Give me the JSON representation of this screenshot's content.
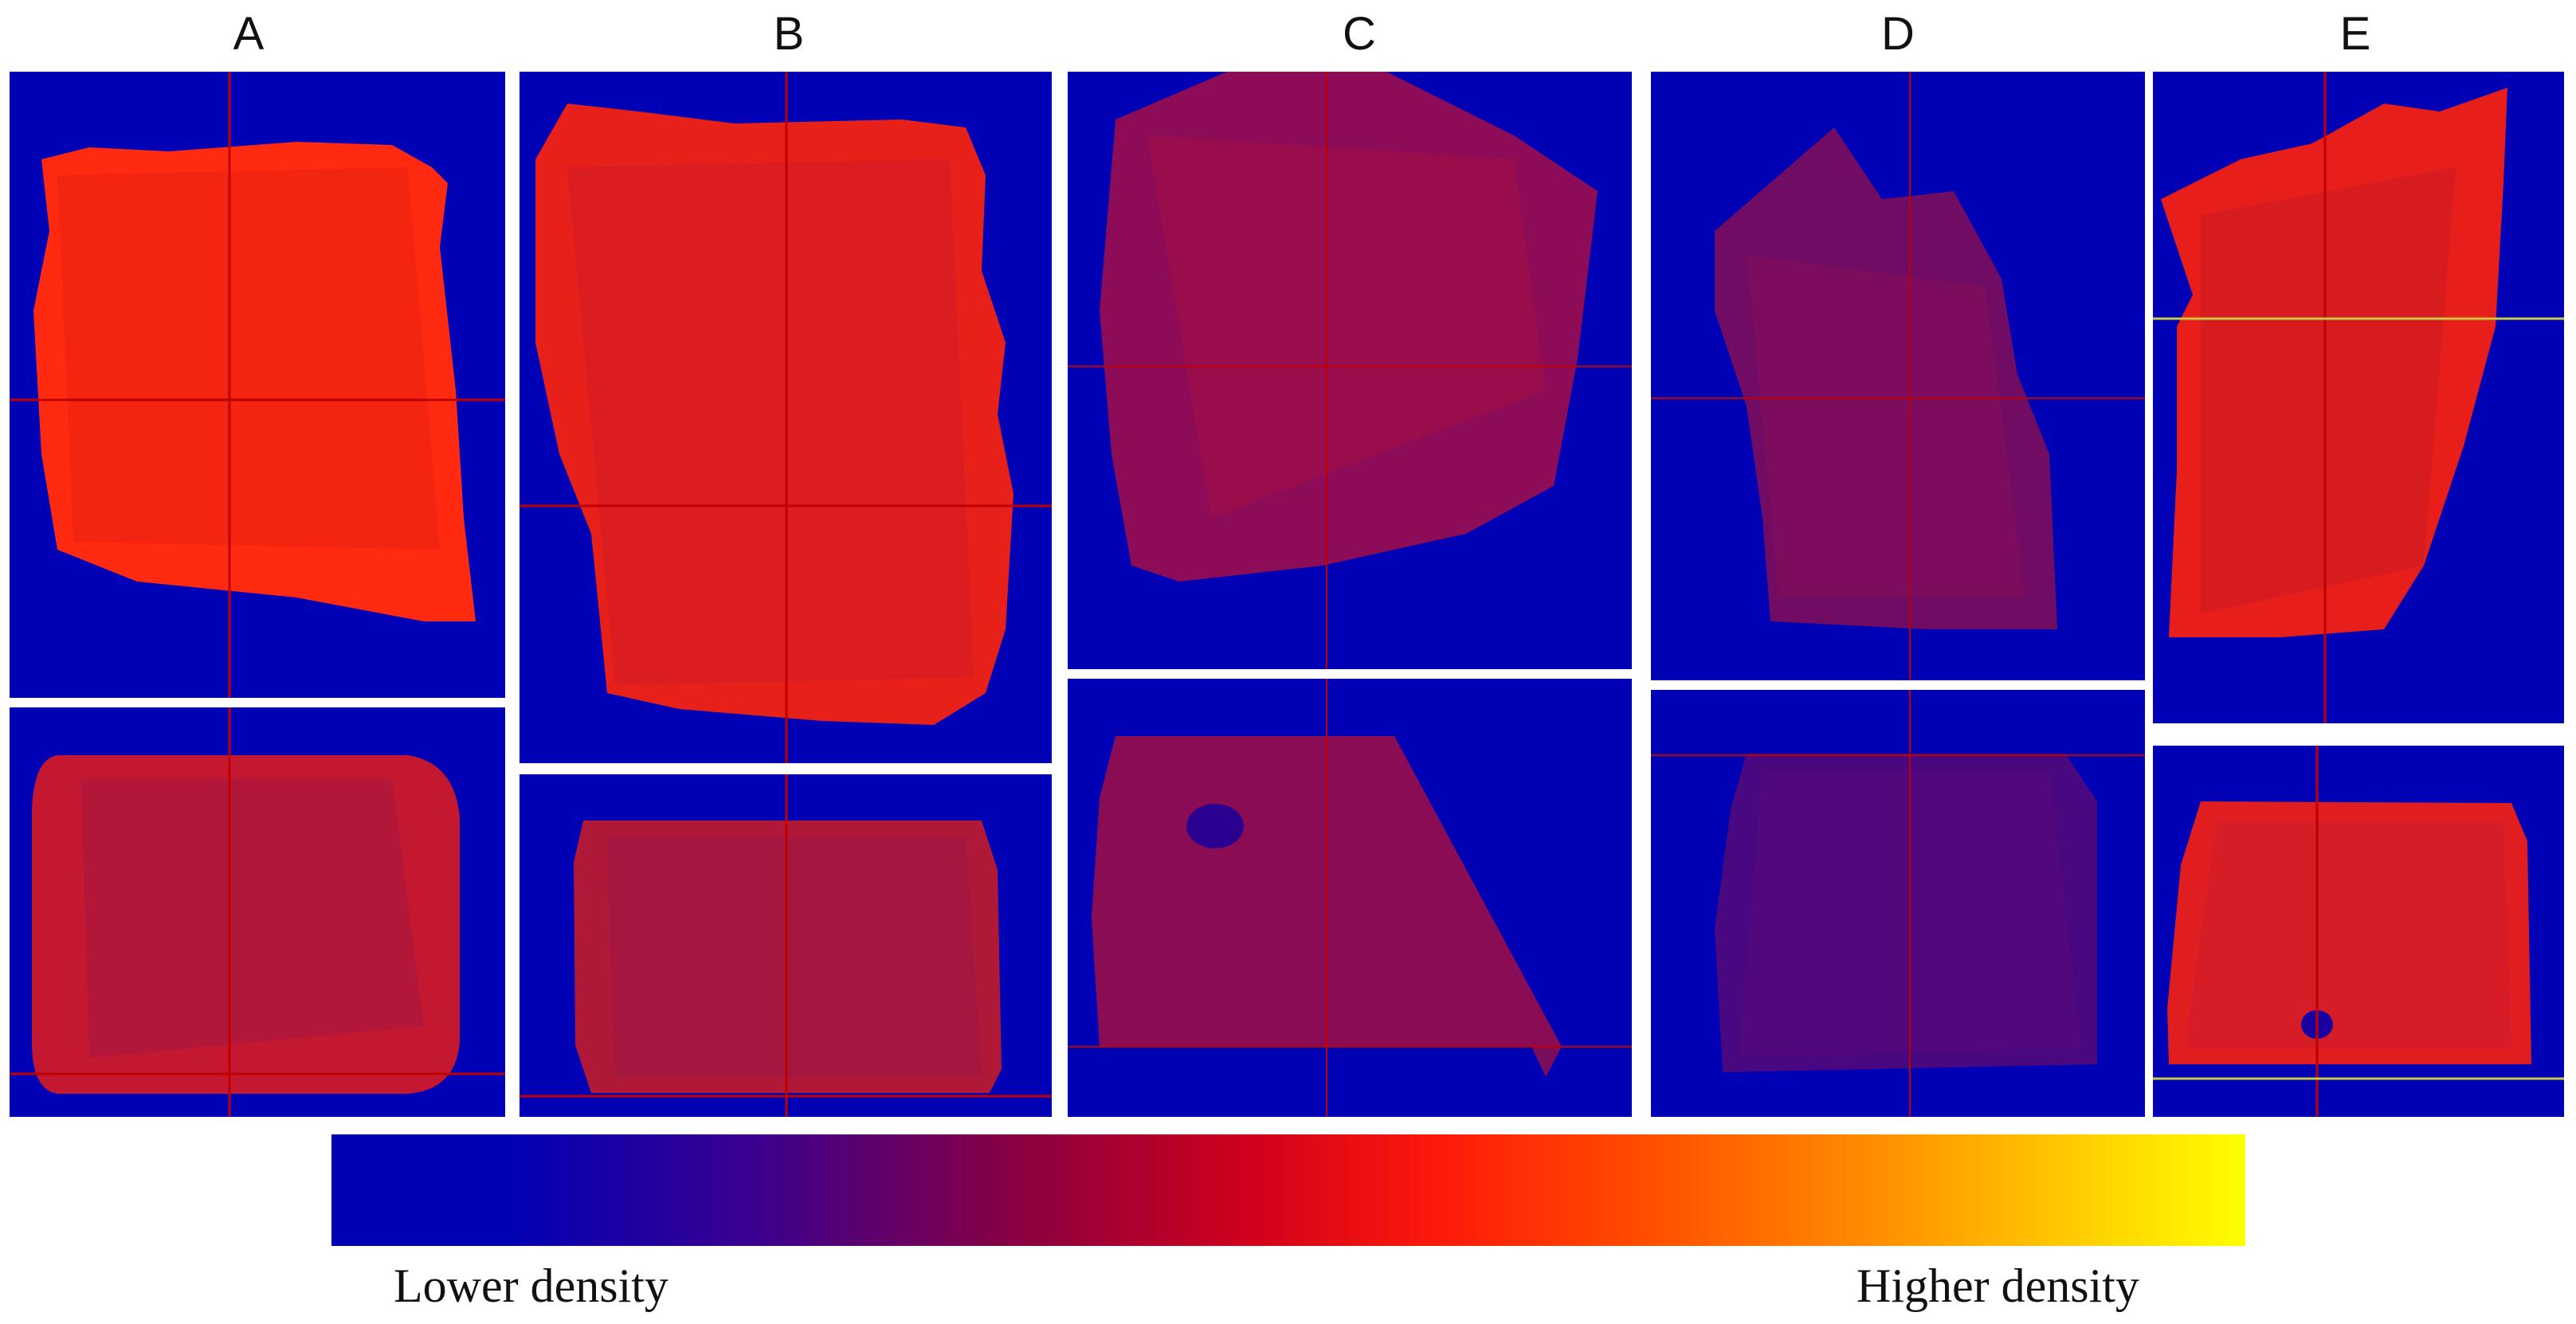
{
  "columns": [
    {
      "label": "A"
    },
    {
      "label": "B"
    },
    {
      "label": "C"
    },
    {
      "label": "D"
    },
    {
      "label": "E"
    }
  ],
  "colorbar": {
    "low_label": "Lower density",
    "high_label": "Higher density",
    "colors": [
      "#0000b4",
      "#8a0040",
      "#ff1a0a",
      "#ff8a00",
      "#ffff00"
    ]
  },
  "colors": {
    "background": "#0000b4",
    "crosshair": "#c00000",
    "crosshair_alt": "#c8c840"
  }
}
